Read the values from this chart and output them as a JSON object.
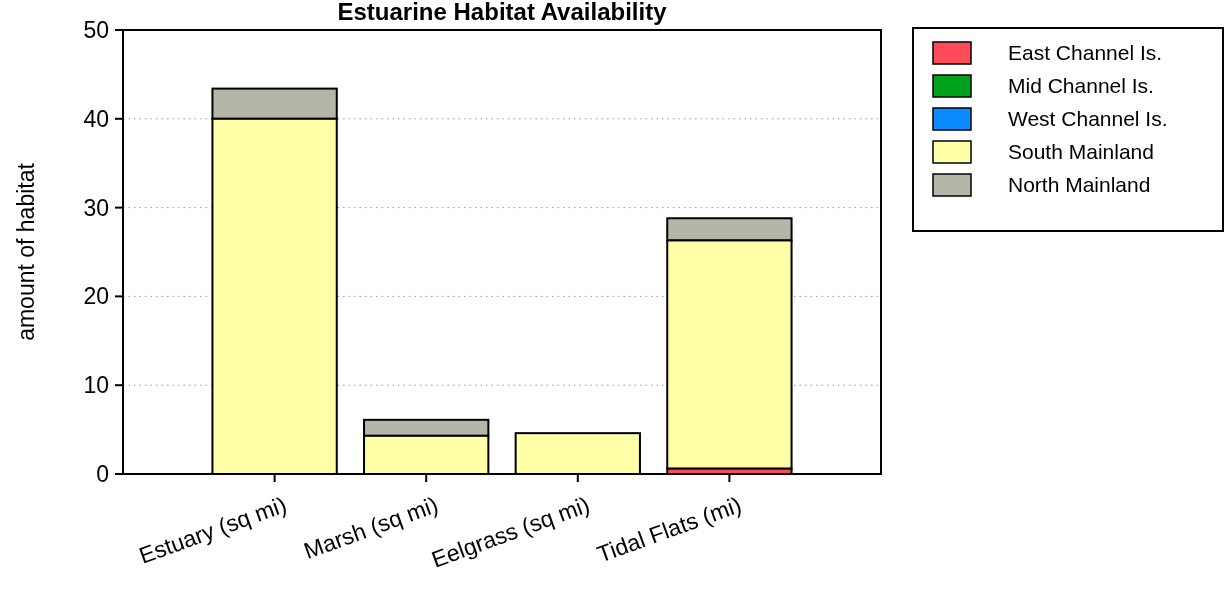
{
  "chart_data": {
    "type": "bar",
    "title": "Estuarine Habitat Availability",
    "ylabel": "amount of habitat",
    "categories": [
      "Estuary (sq mi)",
      "Marsh (sq mi)",
      "Eelgrass (sq mi)",
      "Tidal Flats (mi)"
    ],
    "stacked": true,
    "ylim": [
      0,
      50
    ],
    "yticks": [
      0,
      10,
      20,
      30,
      40,
      50
    ],
    "grid": "y",
    "legend": "top right",
    "series": [
      {
        "name": "East Channel Is.",
        "color": "#ff4b5a",
        "values": [
          0,
          0,
          0,
          0.6
        ]
      },
      {
        "name": "Mid Channel Is.",
        "color": "#00a21c",
        "values": [
          0,
          0,
          0,
          0
        ]
      },
      {
        "name": "West Channel Is.",
        "color": "#0a8cff",
        "values": [
          0,
          0,
          0,
          0
        ]
      },
      {
        "name": "South Mainland",
        "color": "#ffffa8",
        "values": [
          40,
          4.3,
          4.6,
          25.7
        ]
      },
      {
        "name": "North Mainland",
        "color": "#b5b5a8",
        "values": [
          3.4,
          1.8,
          0,
          2.5
        ]
      }
    ]
  }
}
